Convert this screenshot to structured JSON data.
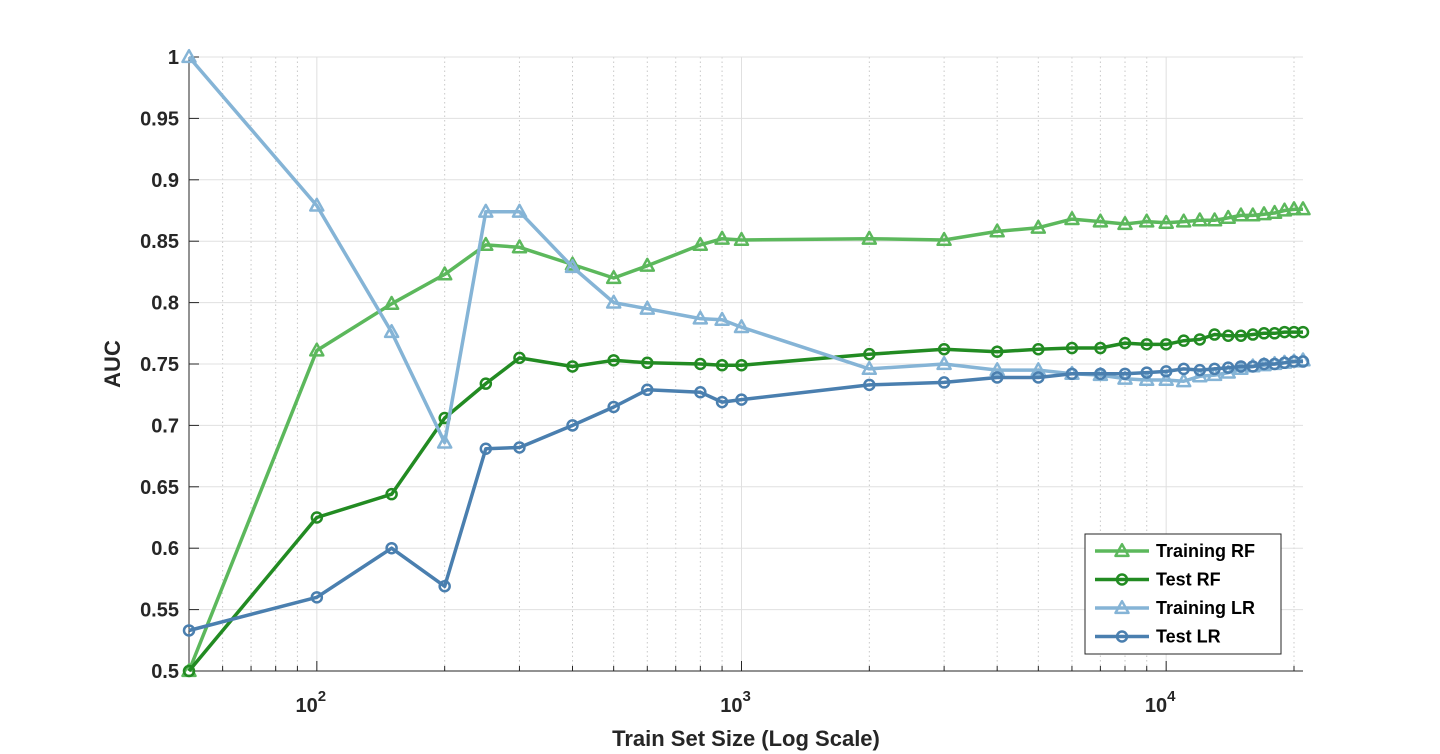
{
  "chart_data": {
    "type": "line",
    "title": "",
    "xlabel": "Train Set Size (Log Scale)",
    "ylabel": "AUC",
    "xscale": "log",
    "xlim": [
      50,
      21000
    ],
    "ylim": [
      0.5,
      1.0
    ],
    "yticks": [
      "0.5",
      "0.55",
      "0.6",
      "0.65",
      "0.7",
      "0.75",
      "0.8",
      "0.85",
      "0.9",
      "0.95",
      "1"
    ],
    "xticks": [
      {
        "value": 100,
        "base": "10",
        "exp": "2"
      },
      {
        "value": 1000,
        "base": "10",
        "exp": "3"
      },
      {
        "value": 10000,
        "base": "10",
        "exp": "4"
      }
    ],
    "grid": true,
    "legend_position": "bottom-right",
    "x": [
      50,
      100,
      150,
      200,
      250,
      300,
      400,
      500,
      600,
      800,
      900,
      1000,
      2000,
      3000,
      4000,
      5000,
      6000,
      7000,
      8000,
      9000,
      10000,
      11000,
      12000,
      13000,
      14000,
      15000,
      16000,
      17000,
      18000,
      19000,
      20000,
      21000
    ],
    "series": [
      {
        "name": "Training RF",
        "color": "#5cb85c",
        "marker": "triangle",
        "values": [
          0.5,
          0.761,
          0.799,
          0.823,
          0.847,
          0.845,
          0.831,
          0.82,
          0.83,
          0.847,
          0.852,
          0.851,
          0.852,
          0.851,
          0.858,
          0.861,
          0.868,
          0.866,
          0.864,
          0.866,
          0.865,
          0.866,
          0.867,
          0.867,
          0.869,
          0.871,
          0.871,
          0.872,
          0.873,
          0.875,
          0.876,
          0.876
        ]
      },
      {
        "name": "Test RF",
        "color": "#228b22",
        "marker": "circle",
        "values": [
          0.5,
          0.625,
          0.644,
          0.706,
          0.734,
          0.755,
          0.748,
          0.753,
          0.751,
          0.75,
          0.749,
          0.749,
          0.758,
          0.762,
          0.76,
          0.762,
          0.763,
          0.763,
          0.767,
          0.766,
          0.766,
          0.769,
          0.77,
          0.774,
          0.773,
          0.773,
          0.774,
          0.775,
          0.775,
          0.776,
          0.776,
          0.776
        ]
      },
      {
        "name": "Training LR",
        "color": "#85b4d6",
        "marker": "triangle",
        "values": [
          1.0,
          0.879,
          0.776,
          0.686,
          0.874,
          0.874,
          0.829,
          0.8,
          0.795,
          0.787,
          0.786,
          0.78,
          0.746,
          0.75,
          0.745,
          0.745,
          0.742,
          0.741,
          0.738,
          0.737,
          0.737,
          0.736,
          0.74,
          0.741,
          0.743,
          0.746,
          0.748,
          0.749,
          0.75,
          0.751,
          0.752,
          0.753
        ]
      },
      {
        "name": "Test LR",
        "color": "#4a7faf",
        "marker": "circle",
        "values": [
          0.533,
          0.56,
          0.6,
          0.569,
          0.681,
          0.682,
          0.7,
          0.715,
          0.729,
          0.727,
          0.719,
          0.721,
          0.733,
          0.735,
          0.739,
          0.739,
          0.742,
          0.742,
          0.742,
          0.743,
          0.744,
          0.746,
          0.745,
          0.746,
          0.747,
          0.748,
          0.748,
          0.75,
          0.75,
          0.751,
          0.752,
          0.752
        ]
      }
    ]
  }
}
